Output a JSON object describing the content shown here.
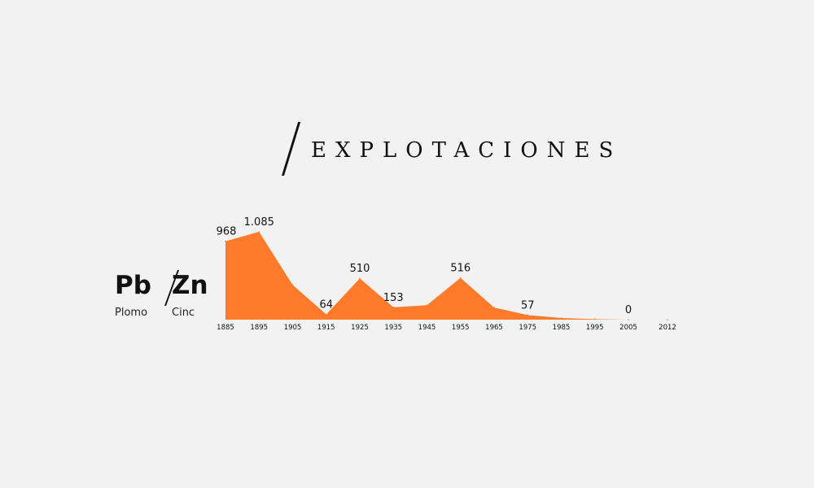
{
  "title": "EXPLOTACIONES",
  "elements": {
    "left": {
      "symbol": "Pb",
      "name": "Plomo"
    },
    "right": {
      "symbol": "Zn",
      "name": "Cinc"
    }
  },
  "colors": {
    "area": "#ff7a2a",
    "text": "#111111",
    "background": "#f2f2f2"
  },
  "chart_data": {
    "type": "area",
    "title": "",
    "x": [
      1885,
      1895,
      1905,
      1915,
      1925,
      1935,
      1945,
      1955,
      1965,
      1975,
      1985,
      1995,
      2005,
      2012
    ],
    "values": [
      968,
      1085,
      430,
      64,
      510,
      153,
      178,
      516,
      150,
      57,
      20,
      6,
      0,
      0
    ],
    "tick_labels": [
      "1885",
      "1895",
      "1905",
      "1915",
      "1925",
      "1935",
      "1945",
      "1955",
      "1965",
      "1975",
      "1985",
      "1995",
      "2005",
      "2012"
    ],
    "data_labels": [
      {
        "x": 1885,
        "text": "968"
      },
      {
        "x": 1895,
        "text": "1.085"
      },
      {
        "x": 1915,
        "text": "64"
      },
      {
        "x": 1925,
        "text": "510"
      },
      {
        "x": 1935,
        "text": "153"
      },
      {
        "x": 1955,
        "text": "516"
      },
      {
        "x": 1975,
        "text": "57"
      },
      {
        "x": 2005,
        "text": "0"
      }
    ],
    "ylim": [
      0,
      1085
    ],
    "grid": false,
    "legend": "none"
  }
}
